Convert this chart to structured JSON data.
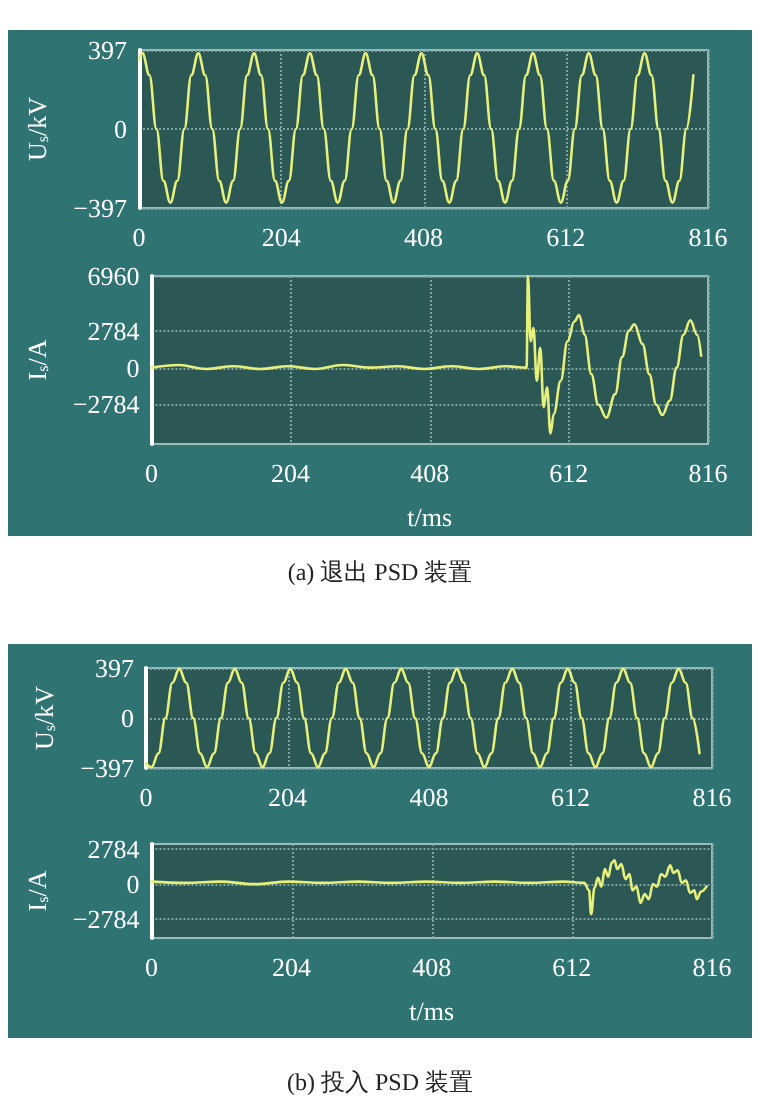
{
  "chart_data": [
    {
      "type": "line",
      "ylabel": "U$_{s}$/kV",
      "xlim": [
        0,
        816
      ],
      "xticks": [
        0,
        204,
        408,
        612,
        816
      ],
      "ylim": [
        -397,
        397
      ],
      "yticks": [
        -397,
        0,
        397
      ],
      "grid": true,
      "marker": "none",
      "series": [
        {
          "color": "#e6f07a",
          "x": [
            0,
            5,
            15,
            25,
            35,
            45,
            55,
            65,
            75,
            85,
            95,
            105,
            115,
            125,
            135,
            145,
            155,
            165,
            175,
            185,
            195,
            205,
            215,
            225,
            235,
            245,
            255,
            265,
            275,
            285,
            295,
            305,
            315,
            325,
            335,
            345,
            355,
            365,
            375,
            385,
            395,
            405,
            415,
            425,
            435,
            445,
            455,
            465,
            475,
            485,
            495,
            505,
            515,
            525,
            535,
            545,
            555,
            565,
            575,
            585,
            595,
            605,
            615,
            625,
            635,
            645,
            655,
            665,
            675,
            685,
            695,
            705,
            715,
            725,
            735,
            745,
            755,
            765,
            775,
            785,
            795
          ],
          "values": [
            350,
            380,
            270,
            0,
            -260,
            -370,
            -260,
            0,
            270,
            380,
            270,
            0,
            -260,
            -370,
            -260,
            0,
            270,
            380,
            270,
            0,
            -260,
            -370,
            -260,
            0,
            270,
            380,
            270,
            0,
            -260,
            -370,
            -260,
            0,
            270,
            380,
            270,
            0,
            -260,
            -370,
            -260,
            0,
            270,
            380,
            270,
            0,
            -260,
            -370,
            -260,
            0,
            270,
            380,
            270,
            0,
            -260,
            -370,
            -260,
            0,
            270,
            380,
            270,
            0,
            -260,
            -370,
            -260,
            0,
            270,
            380,
            270,
            0,
            -260,
            -370,
            -260,
            0,
            270,
            380,
            270,
            0,
            -260,
            -370,
            -260,
            0,
            270
          ]
        }
      ]
    },
    {
      "type": "line",
      "ylabel": "I$_{s}$/A",
      "xlabel": "t/ms",
      "annotations": [
        "(a) 退出 PSD 装置"
      ],
      "xlim": [
        0,
        816
      ],
      "xticks": [
        0,
        204,
        408,
        612,
        816
      ],
      "ylim": [
        -5800,
        6960
      ],
      "yticks": [
        -2784,
        0,
        2784,
        6960
      ],
      "grid": true,
      "marker": "none",
      "series": [
        {
          "color": "#e6f07a",
          "x": [
            0,
            40,
            80,
            120,
            160,
            200,
            240,
            280,
            320,
            360,
            400,
            440,
            480,
            520,
            550,
            552,
            556,
            560,
            565,
            570,
            575,
            580,
            585,
            590,
            600,
            610,
            620,
            627,
            635,
            645,
            655,
            667,
            680,
            690,
            700,
            708,
            720,
            730,
            740,
            749,
            760,
            770,
            780,
            790,
            800,
            806
          ],
          "values": [
            0,
            200,
            -100,
            100,
            -100,
            100,
            -100,
            200,
            0,
            100,
            -100,
            100,
            -100,
            100,
            0,
            6960,
            2000,
            3000,
            -1000,
            1500,
            -3000,
            -1500,
            -5000,
            -3500,
            -1000,
            2000,
            3500,
            4000,
            2500,
            -500,
            -2800,
            -3800,
            -2000,
            800,
            2800,
            3300,
            1800,
            -500,
            -2800,
            -3600,
            -2500,
            0,
            2500,
            3600,
            2500,
            900
          ]
        }
      ]
    },
    {
      "type": "line",
      "ylabel": "U$_{s}$/kV",
      "xlim": [
        0,
        816
      ],
      "xticks": [
        0,
        204,
        408,
        612,
        816
      ],
      "ylim": [
        -397,
        397
      ],
      "yticks": [
        -397,
        0,
        397
      ],
      "grid": true,
      "marker": "none",
      "series": [
        {
          "color": "#e6f07a",
          "x": [
            0,
            8,
            18,
            28,
            38,
            48,
            58,
            68,
            78,
            88,
            98,
            108,
            118,
            128,
            138,
            148,
            158,
            168,
            178,
            188,
            198,
            208,
            218,
            228,
            238,
            248,
            258,
            268,
            278,
            288,
            298,
            308,
            318,
            328,
            338,
            348,
            358,
            368,
            378,
            388,
            398,
            408,
            418,
            428,
            438,
            448,
            458,
            468,
            478,
            488,
            498,
            508,
            518,
            528,
            538,
            548,
            558,
            568,
            578,
            588,
            598,
            608,
            618,
            628,
            638,
            648,
            658,
            668,
            678,
            688,
            698,
            708,
            718,
            728,
            738,
            748,
            758,
            768,
            778,
            788,
            798
          ],
          "values": [
            -360,
            -390,
            -280,
            0,
            280,
            390,
            280,
            0,
            -280,
            -390,
            -280,
            0,
            280,
            390,
            280,
            0,
            -280,
            -390,
            -280,
            0,
            280,
            390,
            280,
            0,
            -280,
            -390,
            -280,
            0,
            280,
            390,
            280,
            0,
            -280,
            -390,
            -280,
            0,
            280,
            390,
            280,
            0,
            -280,
            -390,
            -280,
            0,
            280,
            390,
            280,
            0,
            -280,
            -390,
            -280,
            0,
            280,
            390,
            280,
            0,
            -280,
            -390,
            -280,
            0,
            280,
            390,
            280,
            0,
            -280,
            -390,
            -280,
            0,
            280,
            390,
            280,
            0,
            -280,
            -390,
            -280,
            0,
            280,
            390,
            280,
            0,
            -280
          ]
        }
      ]
    },
    {
      "type": "line",
      "ylabel": "I$_{s}$/A",
      "xlabel": "t/ms",
      "annotations": [
        "(b) 投入 PSD 装置"
      ],
      "xlim": [
        0,
        816
      ],
      "xticks": [
        0,
        204,
        408,
        612,
        816
      ],
      "ylim": [
        -4300,
        3200
      ],
      "yticks": [
        -2784,
        0,
        2784
      ],
      "grid": true,
      "marker": "none",
      "series": [
        {
          "color": "#e6f07a",
          "x": [
            0,
            50,
            100,
            150,
            200,
            250,
            300,
            350,
            400,
            450,
            500,
            550,
            600,
            630,
            637,
            640,
            645,
            650,
            655,
            660,
            665,
            670,
            674,
            678,
            684,
            690,
            696,
            700,
            706,
            712,
            718,
            724,
            730,
            736,
            742,
            748,
            755,
            760,
            766,
            772,
            778,
            784,
            790,
            794,
            800,
            808
          ],
          "values": [
            200,
            100,
            200,
            0,
            200,
            100,
            200,
            100,
            200,
            100,
            200,
            100,
            200,
            100,
            -500,
            -2400,
            -300,
            500,
            -200,
            1200,
            600,
            1700,
            1900,
            1200,
            1600,
            400,
            800,
            -500,
            -200,
            -1500,
            -800,
            -1200,
            0,
            -200,
            800,
            600,
            1500,
            900,
            1100,
            100,
            300,
            -700,
            -500,
            -1200,
            -600,
            -200
          ]
        }
      ]
    }
  ]
}
